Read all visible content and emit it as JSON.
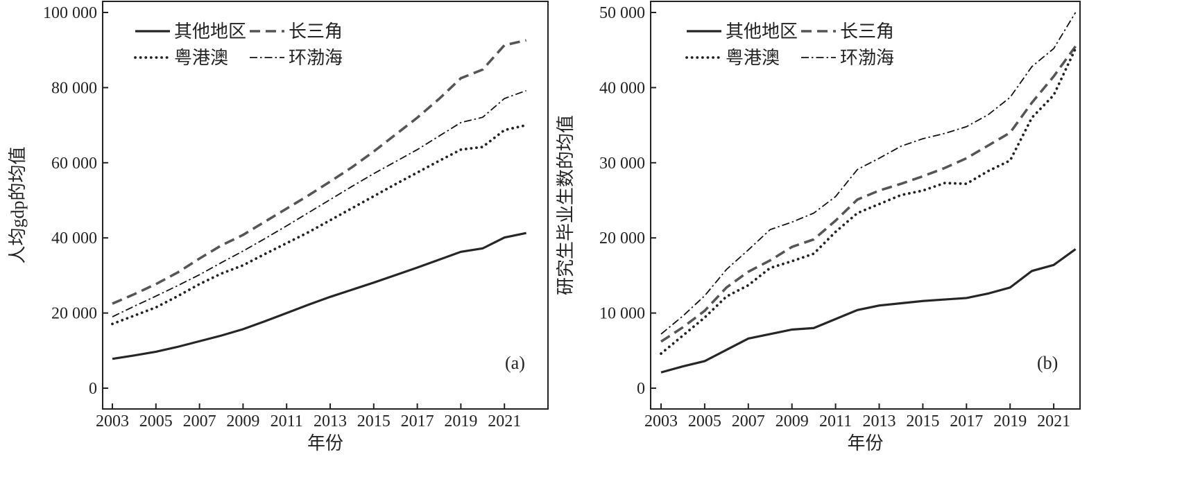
{
  "chart_data": [
    {
      "type": "line",
      "panel_label": "(a)",
      "xlabel": "年份",
      "ylabel": "人均gdp的均值",
      "ylim": [
        0,
        100000
      ],
      "xlim": [
        2003,
        2022
      ],
      "yticks": [
        0,
        20000,
        40000,
        60000,
        80000,
        100000
      ],
      "ytick_labels": [
        "0",
        "20 000",
        "40 000",
        "60 000",
        "80 000",
        "100 000"
      ],
      "xticks": [
        2003,
        2005,
        2007,
        2009,
        2011,
        2013,
        2015,
        2017,
        2019,
        2021
      ],
      "xtick_labels": [
        "2003",
        "2005",
        "2007",
        "2009",
        "2011",
        "2013",
        "2015",
        "2017",
        "2019",
        "2021"
      ],
      "legend_position": "top-left",
      "x": [
        2003,
        2004,
        2005,
        2006,
        2007,
        2008,
        2009,
        2010,
        2011,
        2012,
        2013,
        2014,
        2015,
        2016,
        2017,
        2018,
        2019,
        2020,
        2021,
        2022
      ],
      "series": [
        {
          "name": "其他地区",
          "style": "solid",
          "values": [
            7800,
            8700,
            9700,
            11000,
            12500,
            14000,
            15700,
            17800,
            20000,
            22200,
            24300,
            26200,
            28100,
            30100,
            32100,
            34200,
            36300,
            37200,
            40100,
            41300
          ]
        },
        {
          "name": "长三角",
          "style": "dashed",
          "values": [
            22500,
            25000,
            27700,
            30800,
            34500,
            38000,
            40800,
            44300,
            47800,
            51300,
            55000,
            58800,
            63000,
            67500,
            72000,
            77000,
            82500,
            84800,
            91300,
            92600
          ]
        },
        {
          "name": "粤港澳",
          "style": "dotted",
          "values": [
            17100,
            19300,
            21500,
            24500,
            27700,
            30500,
            32700,
            35700,
            38600,
            41500,
            44700,
            47900,
            51100,
            54300,
            57400,
            60500,
            63500,
            64200,
            68700,
            70000
          ]
        },
        {
          "name": "环渤海",
          "style": "dashdot",
          "values": [
            19000,
            21800,
            24500,
            27300,
            30200,
            33400,
            36500,
            39800,
            43200,
            46700,
            50200,
            53700,
            57100,
            60300,
            63500,
            67100,
            70700,
            72100,
            77100,
            79200
          ]
        }
      ]
    },
    {
      "type": "line",
      "panel_label": "(b)",
      "xlabel": "年份",
      "ylabel": "研究生毕业生数的均值",
      "ylim": [
        0,
        50000
      ],
      "xlim": [
        2003,
        2022
      ],
      "yticks": [
        0,
        10000,
        20000,
        30000,
        40000,
        50000
      ],
      "ytick_labels": [
        "0",
        "10 000",
        "20 000",
        "30 000",
        "40 000",
        "50 000"
      ],
      "xticks": [
        2003,
        2005,
        2007,
        2009,
        2011,
        2013,
        2015,
        2017,
        2019,
        2021
      ],
      "xtick_labels": [
        "2003",
        "2005",
        "2007",
        "2009",
        "2011",
        "2013",
        "2015",
        "2017",
        "2019",
        "2021"
      ],
      "legend_position": "top-left",
      "x": [
        2003,
        2004,
        2005,
        2006,
        2007,
        2008,
        2009,
        2010,
        2011,
        2012,
        2013,
        2014,
        2015,
        2016,
        2017,
        2018,
        2019,
        2020,
        2021,
        2022
      ],
      "series": [
        {
          "name": "其他地区",
          "style": "solid",
          "values": [
            2100,
            2900,
            3600,
            5100,
            6600,
            7200,
            7800,
            8000,
            9200,
            10400,
            11000,
            11300,
            11600,
            11800,
            12000,
            12600,
            13400,
            15600,
            16400,
            18500
          ]
        },
        {
          "name": "长三角",
          "style": "dashed",
          "values": [
            6200,
            8100,
            10300,
            13400,
            15500,
            17000,
            18800,
            19800,
            22300,
            25100,
            26300,
            27200,
            28200,
            29300,
            30600,
            32300,
            34000,
            38000,
            41500,
            45500
          ]
        },
        {
          "name": "粤港澳",
          "style": "dotted",
          "values": [
            4600,
            7000,
            9400,
            12200,
            13700,
            16000,
            16900,
            17900,
            20800,
            23300,
            24500,
            25700,
            26300,
            27300,
            27200,
            28900,
            30300,
            36000,
            39000,
            45200
          ]
        },
        {
          "name": "环渤海",
          "style": "dashdot",
          "values": [
            7200,
            9600,
            12300,
            15800,
            18400,
            21100,
            22100,
            23300,
            25500,
            29100,
            30600,
            32200,
            33200,
            33900,
            34800,
            36400,
            38700,
            42800,
            45200,
            50000
          ]
        }
      ]
    }
  ]
}
